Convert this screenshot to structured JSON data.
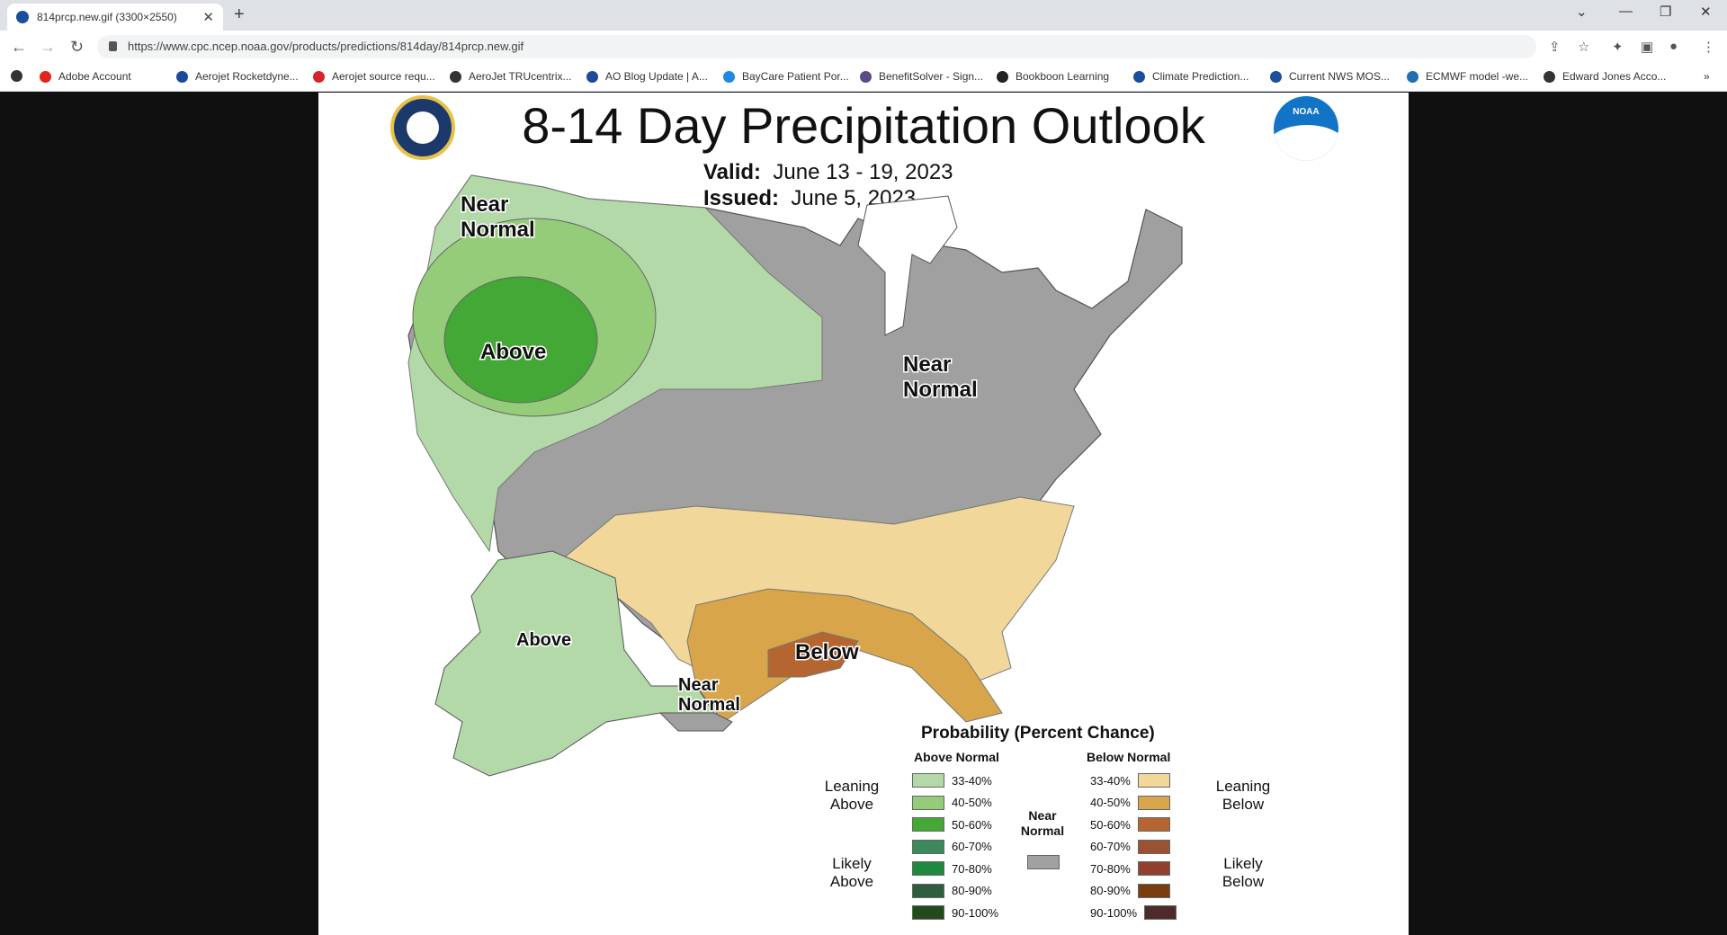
{
  "browser": {
    "tab_title": "814prcp.new.gif (3300×2550)",
    "url": "https://www.cpc.ncep.noaa.gov/products/predictions/814day/814prcp.new.gif",
    "bookmarks": [
      {
        "label": "Adobe Account",
        "color": "#e1251b"
      },
      {
        "label": "Aerojet Rocketdyne...",
        "color": "#1b4a9c"
      },
      {
        "label": "Aerojet source requ...",
        "color": "#d8232a"
      },
      {
        "label": "AeroJet TRUcentrix...",
        "color": "#333333"
      },
      {
        "label": "AO Blog Update | A...",
        "color": "#1b4a9c"
      },
      {
        "label": "BayCare Patient Por...",
        "color": "#1e88e5"
      },
      {
        "label": "BenefitSolver - Sign...",
        "color": "#5b4a8a"
      },
      {
        "label": "Bookboon Learning",
        "color": "#222222"
      },
      {
        "label": "Climate Prediction...",
        "color": "#1a4f9c"
      },
      {
        "label": "Current NWS MOS...",
        "color": "#1a4f9c"
      },
      {
        "label": "ECMWF model -we...",
        "color": "#1f6fb2"
      },
      {
        "label": "Edward Jones Acco...",
        "color": "#333333"
      }
    ]
  },
  "map": {
    "title": "8-14 Day Precipitation Outlook",
    "valid_label": "Valid:",
    "valid_value": "June 13 - 19, 2023",
    "issued_label": "Issued:",
    "issued_value": "June 5, 2023",
    "region_labels": {
      "nw": "Near Normal",
      "west": "Above",
      "east": "Near Normal",
      "gulf": "Below",
      "alaska": "Above",
      "ak_se": "Near Normal"
    },
    "colors": {
      "above_33_40": "#b3d9a8",
      "above_40_50": "#95cc7a",
      "above_50_60": "#43a835",
      "near_normal": "#a0a0a0",
      "below_33_40": "#f1d79a",
      "below_40_50": "#d9a54a",
      "below_50_60": "#b5652f"
    }
  },
  "legend": {
    "title": "Probability (Percent Chance)",
    "above_header": "Above Normal",
    "below_header": "Below Normal",
    "leaning_above": "Leaning Above",
    "likely_above": "Likely Above",
    "leaning_below": "Leaning Below",
    "likely_below": "Likely Below",
    "near_normal": "Near Normal",
    "above": [
      {
        "label": "33-40%",
        "color": "#b3d9a8"
      },
      {
        "label": "40-50%",
        "color": "#95cc7a"
      },
      {
        "label": "50-60%",
        "color": "#43a835"
      },
      {
        "label": "60-70%",
        "color": "#3a8a5c"
      },
      {
        "label": "70-80%",
        "color": "#1e8a3e"
      },
      {
        "label": "80-90%",
        "color": "#2e5e3e"
      },
      {
        "label": "90-100%",
        "color": "#234a1a"
      }
    ],
    "below": [
      {
        "label": "33-40%",
        "color": "#f1d79a"
      },
      {
        "label": "40-50%",
        "color": "#d9a54a"
      },
      {
        "label": "50-60%",
        "color": "#b5652f"
      },
      {
        "label": "60-70%",
        "color": "#9b5232"
      },
      {
        "label": "70-80%",
        "color": "#913f2e"
      },
      {
        "label": "80-90%",
        "color": "#7a3d0d"
      },
      {
        "label": "90-100%",
        "color": "#4e2a2a"
      }
    ]
  }
}
